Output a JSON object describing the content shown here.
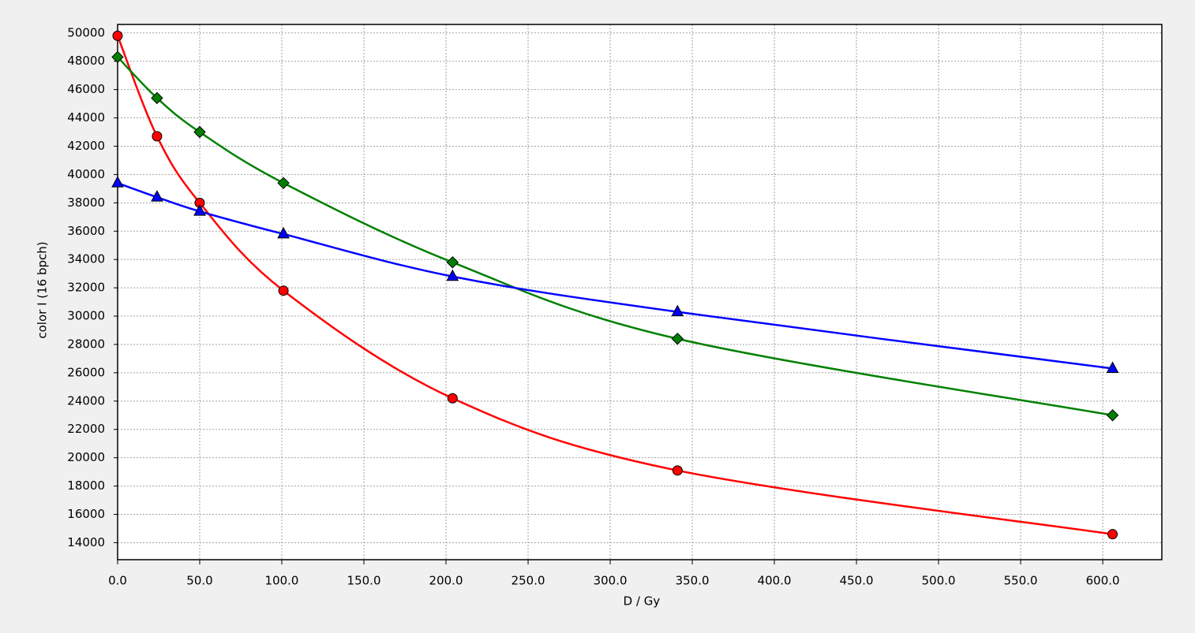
{
  "chart_data": {
    "type": "line",
    "x_label": "D / Gy",
    "y_label": "color I (16 bpch)",
    "x": [
      0,
      24,
      50,
      101,
      204,
      341,
      606
    ],
    "series": [
      {
        "color": "#ff0000",
        "marker": "circle",
        "values": [
          49800,
          42700,
          38000,
          31800,
          24200,
          19100,
          14600
        ]
      },
      {
        "color": "#008000",
        "marker": "diamond",
        "values": [
          48300,
          45400,
          43000,
          39400,
          33800,
          28400,
          23000
        ]
      },
      {
        "color": "#0000ff",
        "marker": "triangle",
        "values": [
          39400,
          38400,
          37400,
          35800,
          32800,
          30300,
          26300
        ]
      }
    ],
    "xlim": [
      0,
      636
    ],
    "xticks": [
      {
        "value": 0,
        "label": "0.0"
      },
      {
        "value": 50,
        "label": "50.0"
      },
      {
        "value": 100,
        "label": "100.0"
      },
      {
        "value": 150,
        "label": "150.0"
      },
      {
        "value": 200,
        "label": "200.0"
      },
      {
        "value": 250,
        "label": "250.0"
      },
      {
        "value": 300,
        "label": "300.0"
      },
      {
        "value": 350,
        "label": "350.0"
      },
      {
        "value": 400,
        "label": "400.0"
      },
      {
        "value": 450,
        "label": "450.0"
      },
      {
        "value": 500,
        "label": "500.0"
      },
      {
        "value": 550,
        "label": "550.0"
      },
      {
        "value": 600,
        "label": "600.0"
      }
    ],
    "ylim": [
      12800,
      50600
    ],
    "yticks": [
      14000,
      16000,
      18000,
      20000,
      22000,
      24000,
      26000,
      28000,
      30000,
      32000,
      34000,
      36000,
      38000,
      40000,
      42000,
      44000,
      46000,
      48000,
      50000
    ],
    "grid": true
  }
}
